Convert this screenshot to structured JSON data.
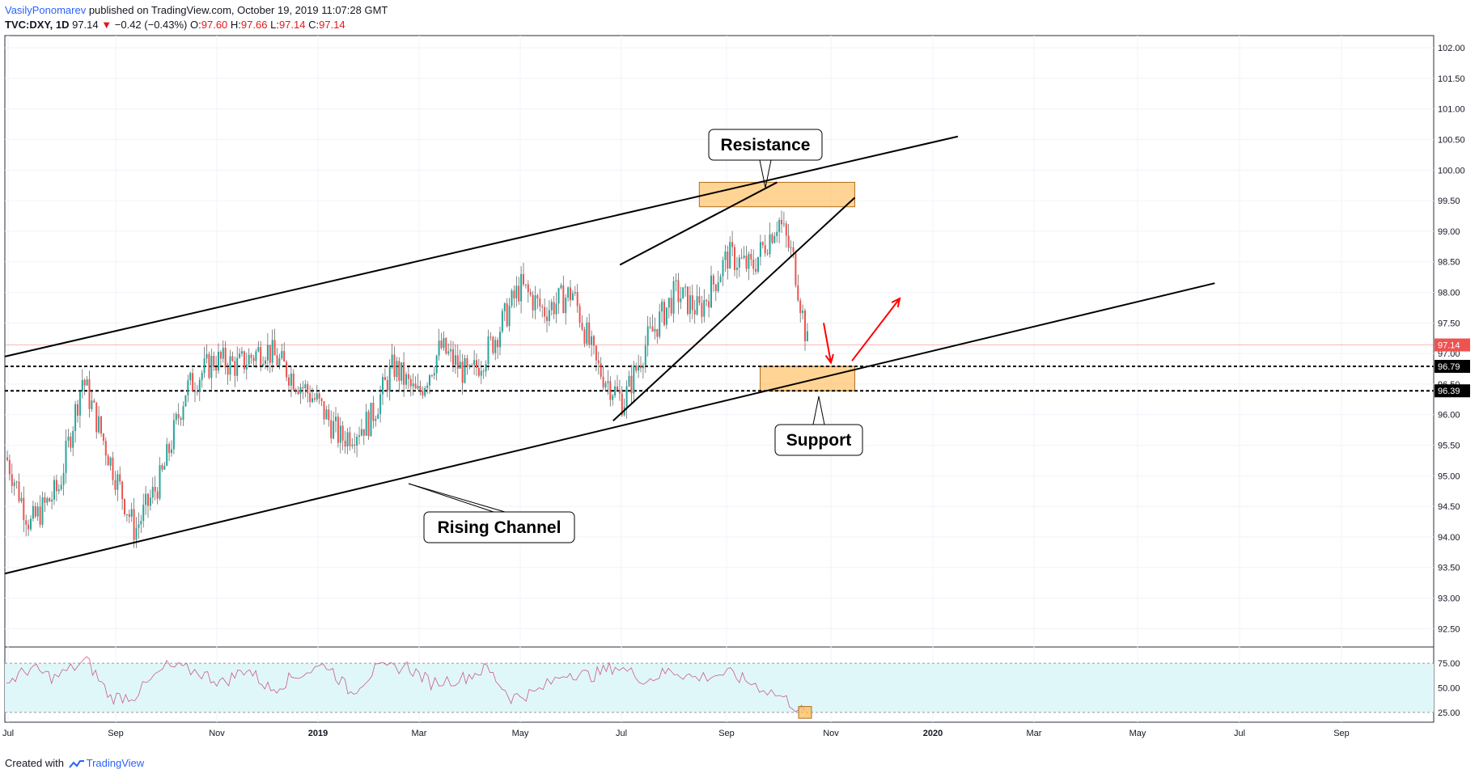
{
  "header": {
    "author": "VasilyPonomarev",
    "published": "published on TradingView.com, October 19, 2019 11:07:28 GMT",
    "symbol": "TVC:DXY, 1D",
    "last": "97.14",
    "change": "−0.42 (−0.43%)",
    "o_label": "O:",
    "o_value": "97.60",
    "h_label": "H:",
    "h_value": "97.66",
    "l_label": "L:",
    "l_value": "97.14",
    "c_label": "C:",
    "c_value": "97.14"
  },
  "footer": {
    "created_with": "Created with",
    "brand": "TradingView"
  },
  "colors": {
    "up": "#26a69a",
    "down": "#ef5350",
    "zone": "#ffb74d",
    "arrow": "#ff0000",
    "rsi_band": "#e0f7fa",
    "rsi_line": "#c2185b"
  },
  "chart_data": {
    "type": "candlestick",
    "timeframe": "1D",
    "x_ticks": [
      "Jul",
      "Sep",
      "Nov",
      "2019",
      "Mar",
      "May",
      "Jul",
      "Sep",
      "Nov",
      "2020",
      "Mar",
      "May",
      "Jul",
      "Sep"
    ],
    "y_ticks": [
      "102.00",
      "101.50",
      "101.00",
      "100.50",
      "100.00",
      "99.50",
      "99.00",
      "98.50",
      "98.00",
      "97.50",
      "97.00",
      "96.50",
      "96.00",
      "95.50",
      "95.00",
      "94.50",
      "94.00",
      "93.50",
      "93.00",
      "92.50"
    ],
    "ylim": [
      92.2,
      102.2
    ],
    "price_labels": [
      {
        "value": 97.14,
        "text": "97.14",
        "color": "#ef5350"
      },
      {
        "value": 96.79,
        "text": "96.79",
        "color": "#000000"
      },
      {
        "value": 96.39,
        "text": "96.39",
        "color": "#000000"
      }
    ],
    "close_path": [
      [
        "2018-07-01",
        95.3
      ],
      [
        "2018-07-15",
        94.2
      ],
      [
        "2018-08-01",
        94.8
      ],
      [
        "2018-08-15",
        96.6
      ],
      [
        "2018-09-01",
        95.2
      ],
      [
        "2018-09-15",
        94.1
      ],
      [
        "2018-10-01",
        95.0
      ],
      [
        "2018-10-15",
        96.4
      ],
      [
        "2018-11-01",
        96.9
      ],
      [
        "2018-11-15",
        96.8
      ],
      [
        "2018-12-01",
        97.1
      ],
      [
        "2018-12-15",
        96.7
      ],
      [
        "2019-01-01",
        96.2
      ],
      [
        "2019-01-15",
        95.6
      ],
      [
        "2019-02-01",
        95.9
      ],
      [
        "2019-02-15",
        96.8
      ],
      [
        "2019-03-01",
        96.3
      ],
      [
        "2019-03-15",
        97.1
      ],
      [
        "2019-04-01",
        96.6
      ],
      [
        "2019-04-15",
        97.2
      ],
      [
        "2019-05-01",
        98.1
      ],
      [
        "2019-05-15",
        97.7
      ],
      [
        "2019-06-01",
        98.0
      ],
      [
        "2019-06-15",
        96.8
      ],
      [
        "2019-07-01",
        96.2
      ],
      [
        "2019-07-15",
        97.2
      ],
      [
        "2019-08-01",
        98.0
      ],
      [
        "2019-08-15",
        97.7
      ],
      [
        "2019-09-01",
        98.6
      ],
      [
        "2019-09-15",
        98.4
      ],
      [
        "2019-10-01",
        99.2
      ],
      [
        "2019-10-10",
        98.5
      ],
      [
        "2019-10-18",
        97.14
      ]
    ],
    "rsi": {
      "levels": [
        75,
        50,
        25
      ],
      "labels": [
        "75.00",
        "50.00",
        "25.00"
      ],
      "path": [
        [
          0,
          55
        ],
        [
          0.03,
          70
        ],
        [
          0.06,
          60
        ],
        [
          0.1,
          78
        ],
        [
          0.13,
          40
        ],
        [
          0.16,
          42
        ],
        [
          0.2,
          72
        ],
        [
          0.24,
          66
        ],
        [
          0.27,
          55
        ],
        [
          0.3,
          70
        ],
        [
          0.33,
          48
        ],
        [
          0.36,
          62
        ],
        [
          0.4,
          74
        ],
        [
          0.43,
          45
        ],
        [
          0.46,
          68
        ],
        [
          0.5,
          72
        ],
        [
          0.53,
          55
        ],
        [
          0.57,
          60
        ],
        [
          0.6,
          70
        ],
        [
          0.63,
          40
        ],
        [
          0.66,
          45
        ],
        [
          0.7,
          66
        ],
        [
          0.73,
          62
        ],
        [
          0.76,
          72
        ],
        [
          0.8,
          58
        ],
        [
          0.83,
          68
        ],
        [
          0.86,
          60
        ],
        [
          0.9,
          65
        ],
        [
          0.93,
          55
        ],
        [
          0.97,
          40
        ],
        [
          1.0,
          22
        ]
      ]
    },
    "lines": [
      {
        "name": "channel-top",
        "from": [
          "2018-06-30",
          96.95
        ],
        "to": [
          "2020-01-15",
          100.55
        ]
      },
      {
        "name": "channel-bottom",
        "from": [
          "2018-06-30",
          93.4
        ],
        "to": [
          "2020-06-15",
          98.15
        ]
      },
      {
        "name": "wedge-top",
        "from": [
          "2019-06-29",
          98.45
        ],
        "to": [
          "2019-09-30",
          99.8
        ]
      },
      {
        "name": "wedge-bottom",
        "from": [
          "2019-06-25",
          95.9
        ],
        "to": [
          "2019-11-15",
          99.55
        ]
      }
    ],
    "zones": [
      {
        "name": "resistance-zone",
        "from": [
          "2019-08-15",
          99.8
        ],
        "to": [
          "2019-11-15",
          99.4
        ]
      },
      {
        "name": "support-zone",
        "from": [
          "2019-09-20",
          96.79
        ],
        "to": [
          "2019-11-15",
          96.39
        ]
      }
    ],
    "hlines": [
      96.79,
      96.39
    ],
    "annotations": [
      {
        "text": "Resistance",
        "value": 100.0
      },
      {
        "text": "Support",
        "value": 96.0
      },
      {
        "text": "Rising Channel",
        "value": 94.9
      }
    ]
  }
}
